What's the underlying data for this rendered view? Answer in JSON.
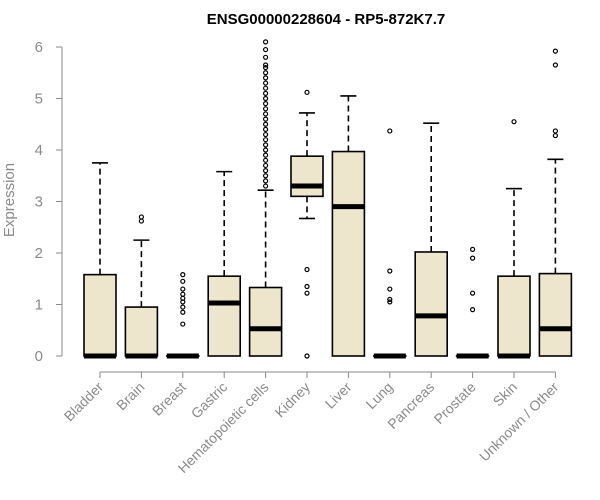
{
  "chart_data": {
    "type": "boxplot",
    "title": "ENSG00000228604 - RP5-872K7.7",
    "xlabel": "",
    "ylabel": "Expression",
    "ylim": [
      0,
      6.2
    ],
    "yticks": [
      0,
      1,
      2,
      3,
      4,
      5,
      6
    ],
    "ytick_labels": [
      "0",
      "1",
      "2",
      "3",
      "4",
      "5",
      "6"
    ],
    "categories": [
      "Bladder",
      "Brain",
      "Breast",
      "Gastric",
      "Hematopoietic cells",
      "Kidney",
      "Liver",
      "Lung",
      "Pancreas",
      "Prostate",
      "Skin",
      "Unknown / Other"
    ],
    "box_fill": "#ede6cc",
    "box_stroke": "#000000",
    "boxes": [
      {
        "name": "Bladder",
        "min": 0,
        "q1": 0,
        "median": 0,
        "q3": 1.58,
        "max": 3.75,
        "outliers": []
      },
      {
        "name": "Brain",
        "min": 0,
        "q1": 0,
        "median": 0,
        "q3": 0.95,
        "max": 2.25,
        "outliers": [
          2.62,
          2.7
        ]
      },
      {
        "name": "Breast",
        "min": 0,
        "q1": 0,
        "median": 0,
        "q3": 0,
        "max": 0,
        "outliers": [
          0.62,
          0.85,
          0.95,
          1.05,
          1.12,
          1.2,
          1.3,
          1.45,
          1.58
        ]
      },
      {
        "name": "Gastric",
        "min": 0,
        "q1": 0,
        "median": 1.03,
        "q3": 1.55,
        "max": 3.58,
        "outliers": []
      },
      {
        "name": "Hematopoietic cells",
        "min": 0,
        "q1": 0,
        "median": 0.53,
        "q3": 1.33,
        "max": 3.22,
        "outliers": [
          3.3,
          3.4,
          3.5,
          3.6,
          3.7,
          3.8,
          3.9,
          4.0,
          4.1,
          4.2,
          4.3,
          4.4,
          4.5,
          4.6,
          4.7,
          4.8,
          4.9,
          5.0,
          5.1,
          5.2,
          5.3,
          5.4,
          5.5,
          5.6,
          5.65,
          5.8,
          5.95,
          6.1
        ]
      },
      {
        "name": "Kidney",
        "min": 2.67,
        "q1": 3.1,
        "median": 3.3,
        "q3": 3.88,
        "max": 4.72,
        "outliers": [
          5.12,
          1.68,
          1.35,
          1.22,
          0
        ]
      },
      {
        "name": "Liver",
        "min": 0,
        "q1": 0,
        "median": 2.9,
        "q3": 3.97,
        "max": 5.05,
        "outliers": []
      },
      {
        "name": "Lung",
        "min": 0,
        "q1": 0,
        "median": 0,
        "q3": 0,
        "max": 0,
        "outliers": [
          4.37,
          1.65,
          1.3,
          1.1,
          1.05
        ]
      },
      {
        "name": "Pancreas",
        "min": 0,
        "q1": 0,
        "median": 0.78,
        "q3": 2.02,
        "max": 4.52,
        "outliers": []
      },
      {
        "name": "Prostate",
        "min": 0,
        "q1": 0,
        "median": 0,
        "q3": 0,
        "max": 0,
        "outliers": [
          2.07,
          1.9,
          1.22,
          0.9
        ]
      },
      {
        "name": "Skin",
        "min": 0,
        "q1": 0,
        "median": 0,
        "q3": 1.55,
        "max": 3.25,
        "outliers": [
          4.55
        ]
      },
      {
        "name": "Unknown / Other",
        "min": 0,
        "q1": 0,
        "median": 0.53,
        "q3": 1.6,
        "max": 3.82,
        "outliers": [
          5.92,
          5.65,
          4.37,
          4.28
        ]
      }
    ]
  }
}
